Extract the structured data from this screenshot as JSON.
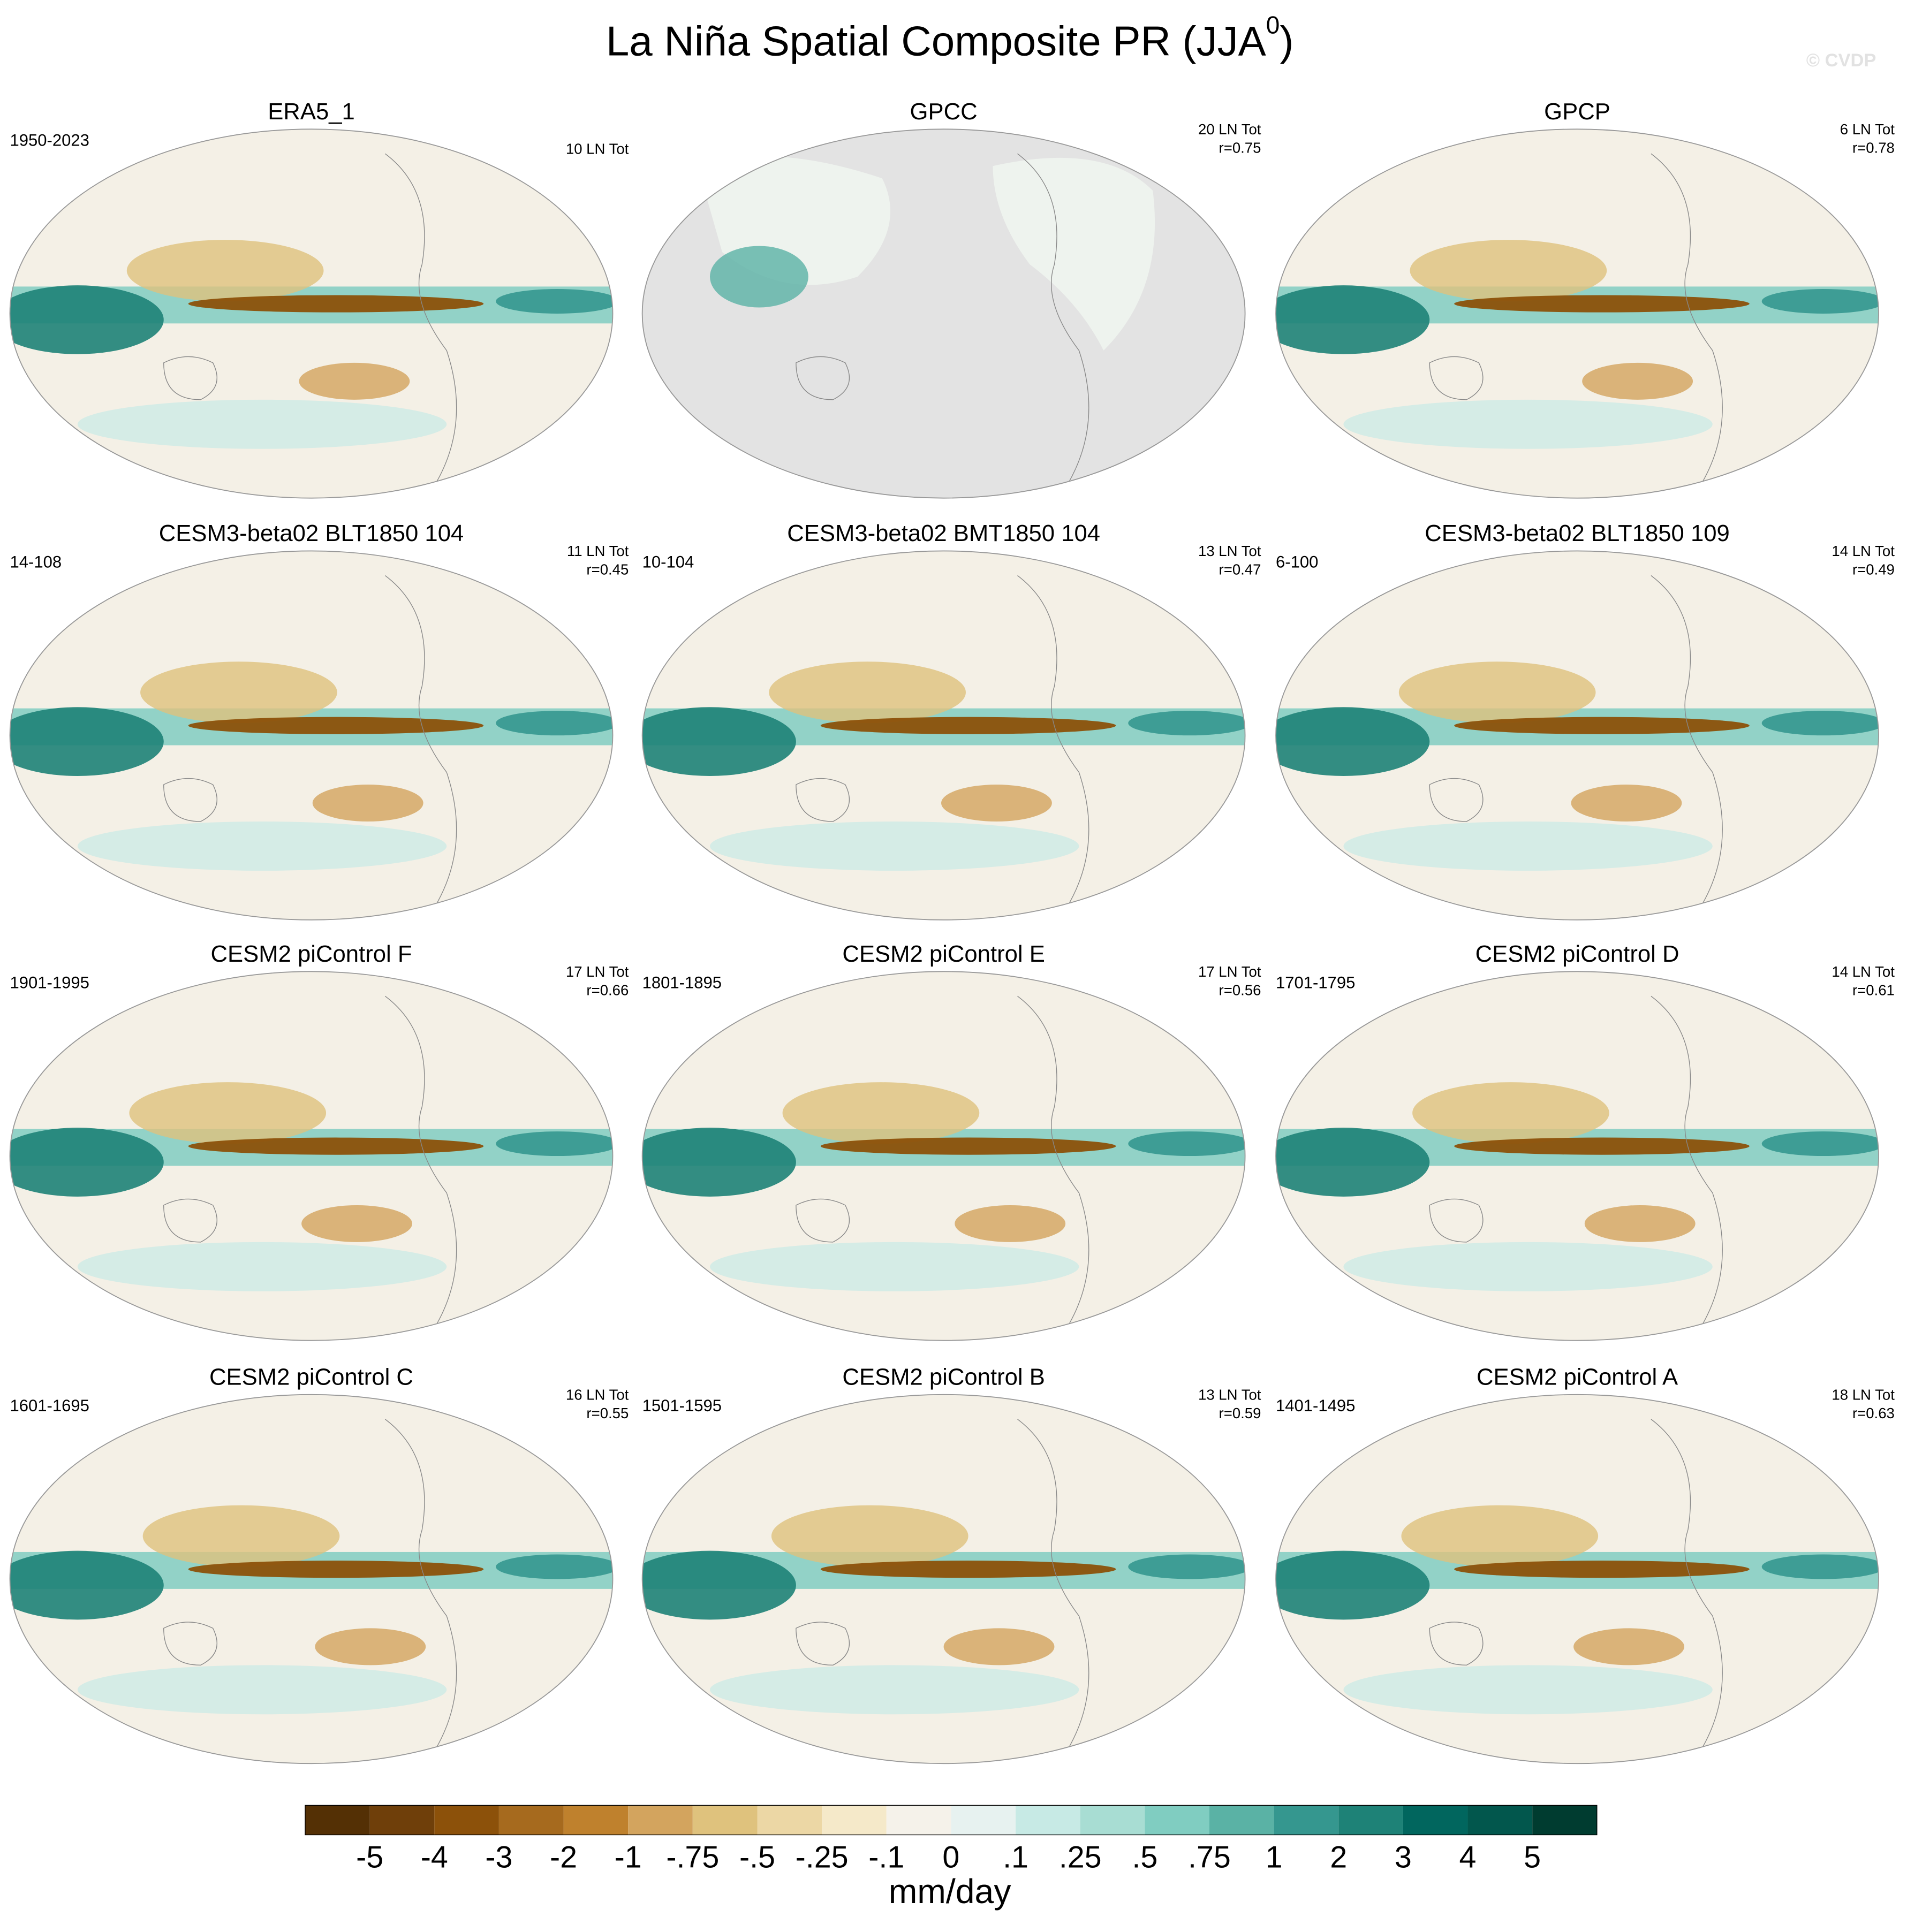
{
  "title": {
    "main": "La Niña Spatial Composite PR (JJA",
    "sup": "0",
    "end": ")"
  },
  "watermark": "© CVDP",
  "panels": [
    {
      "title": "ERA5_1",
      "left": "1950-2023",
      "right": [
        "10 LN Tot"
      ]
    },
    {
      "title": "GPCC",
      "right": [
        "20 LN Tot",
        "r=0.75"
      ]
    },
    {
      "title": "GPCP",
      "right": [
        "6 LN Tot",
        "r=0.78"
      ]
    },
    {
      "title": "CESM3-beta02 BLT1850 104",
      "left": "14-108",
      "right": [
        "11 LN Tot",
        "r=0.45"
      ]
    },
    {
      "title": "CESM3-beta02 BMT1850 104",
      "left": "10-104",
      "right": [
        "13 LN Tot",
        "r=0.47"
      ]
    },
    {
      "title": "CESM3-beta02 BLT1850 109",
      "left": "6-100",
      "right": [
        "14 LN Tot",
        "r=0.49"
      ]
    },
    {
      "title": "CESM2 piControl F",
      "left": "1901-1995",
      "right": [
        "17 LN Tot",
        "r=0.66"
      ]
    },
    {
      "title": "CESM2 piControl E",
      "left": "1801-1895",
      "right": [
        "17 LN Tot",
        "r=0.56"
      ]
    },
    {
      "title": "CESM2 piControl D",
      "left": "1701-1795",
      "right": [
        "14 LN Tot",
        "r=0.61"
      ]
    },
    {
      "title": "CESM2 piControl C",
      "left": "1601-1695",
      "right": [
        "16 LN Tot",
        "r=0.55"
      ]
    },
    {
      "title": "CESM2 piControl B",
      "left": "1501-1595",
      "right": [
        "13 LN Tot",
        "r=0.59"
      ]
    },
    {
      "title": "CESM2 piControl A",
      "left": "1401-1495",
      "right": [
        "18 LN Tot",
        "r=0.63"
      ]
    }
  ],
  "colorbar": {
    "colors": [
      "#543005",
      "#6f3f0a",
      "#8c510a",
      "#a66a1e",
      "#bf812d",
      "#d3a45e",
      "#dfc27d",
      "#ecd7a5",
      "#f5e9c9",
      "#f5f2ea",
      "#e7f2f0",
      "#c7eae5",
      "#a8ddd3",
      "#80cdc1",
      "#5ab2a5",
      "#35978f",
      "#1e8277",
      "#01665e",
      "#02574d",
      "#003c30"
    ],
    "ticks": [
      -5,
      -4,
      -3,
      -2,
      -1,
      {
        "value": -0.75,
        "label": "-.75"
      },
      {
        "value": -0.5,
        "label": "-.5"
      },
      {
        "value": -0.25,
        "label": "-.25"
      },
      {
        "value": -0.1,
        "label": "-.1"
      },
      0,
      {
        "value": 0.1,
        "label": ".1"
      },
      {
        "value": 0.25,
        "label": ".25"
      },
      {
        "value": 0.5,
        "label": ".5"
      },
      {
        "value": 0.75,
        "label": ".75"
      },
      1,
      2,
      3,
      4,
      5
    ],
    "unit": "mm/day"
  }
}
